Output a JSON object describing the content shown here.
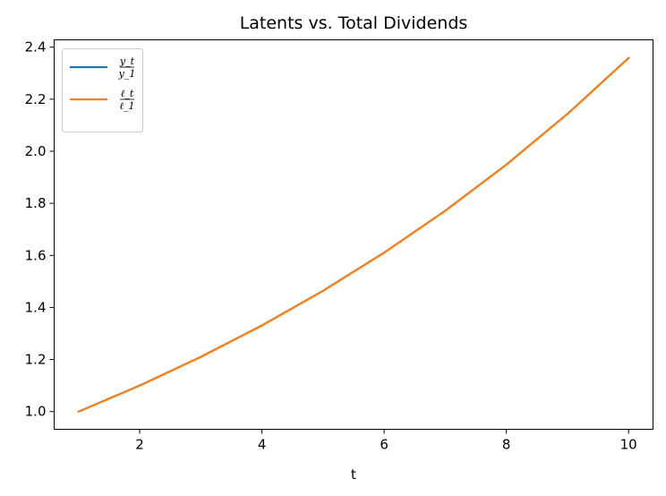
{
  "chart_data": {
    "type": "line",
    "title": "Latents vs. Total Dividends",
    "xlabel": "t",
    "ylabel": "",
    "x": [
      1,
      2,
      3,
      4,
      5,
      6,
      7,
      8,
      9,
      10
    ],
    "xlim": [
      0.6,
      10.4
    ],
    "ylim": [
      0.932,
      2.428
    ],
    "xticks": [
      2,
      4,
      6,
      8,
      10
    ],
    "yticks": [
      1.0,
      1.2,
      1.4,
      1.6,
      1.8,
      2.0,
      2.2,
      2.4
    ],
    "grid": false,
    "legend_position": "top-left",
    "series": [
      {
        "name_num": "y_t",
        "name_den": "y_1",
        "color": "#1f77b4",
        "values": [
          1.0,
          1.1,
          1.21,
          1.331,
          1.4641,
          1.6105,
          1.7716,
          1.9487,
          2.1436,
          2.358
        ]
      },
      {
        "name_num": "ℓ_t",
        "name_den": "ℓ_1",
        "color": "#ff7f0e",
        "values": [
          1.0,
          1.1,
          1.21,
          1.331,
          1.4641,
          1.6105,
          1.7716,
          1.9487,
          2.1436,
          2.358
        ]
      }
    ]
  }
}
